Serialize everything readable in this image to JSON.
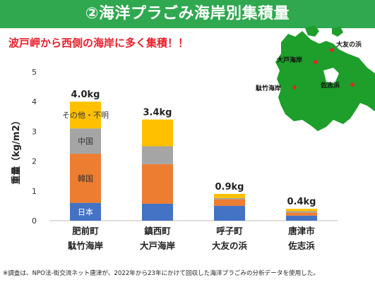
{
  "header": {
    "title": "②海洋プラごみ海岸別集積量"
  },
  "subtitle": "波戸岬から西側の海岸に多く集積！！",
  "footnote": "※調査は、NPO法-街交流ネット唐津が、2022年から23年にかけて回収した海洋プラごみの分析データを使用した。",
  "colors": {
    "title_bg": "#2fa84f",
    "subtitle": "#e8202a",
    "map_land": "#1e9e2a",
    "map_dot": "#e8202a"
  },
  "map": {
    "places": [
      {
        "name": "大友の浜"
      },
      {
        "name": "大戸海岸"
      },
      {
        "name": "駄竹海岸"
      },
      {
        "name": "佐志浜"
      }
    ]
  },
  "chart_data": {
    "type": "bar",
    "stacked": true,
    "ylabel": "重量（kg/m2）",
    "ylim": [
      0,
      5
    ],
    "yticks": [
      0,
      1,
      2,
      3,
      4,
      5
    ],
    "grid": false,
    "categories": [
      [
        "肥前町",
        "駄竹海岸"
      ],
      [
        "鎮西町",
        "大戸海岸"
      ],
      [
        "呼子町",
        "大友の浜"
      ],
      [
        "唐津市",
        "佐志浜"
      ]
    ],
    "totals": [
      "4.0kg",
      "3.4kg",
      "0.9kg",
      "0.4kg"
    ],
    "series": [
      {
        "name": "日本",
        "color": "#4472c4",
        "values": [
          0.6,
          0.57,
          0.5,
          0.17
        ]
      },
      {
        "name": "韓国",
        "color": "#ed7d31",
        "values": [
          1.65,
          1.33,
          0.22,
          0.1
        ]
      },
      {
        "name": "中国",
        "color": "#a5a5a5",
        "values": [
          0.85,
          0.6,
          0.04,
          0.05
        ]
      },
      {
        "name": "その他・不明",
        "color": "#ffc000",
        "values": [
          0.9,
          0.9,
          0.14,
          0.08
        ]
      }
    ]
  }
}
